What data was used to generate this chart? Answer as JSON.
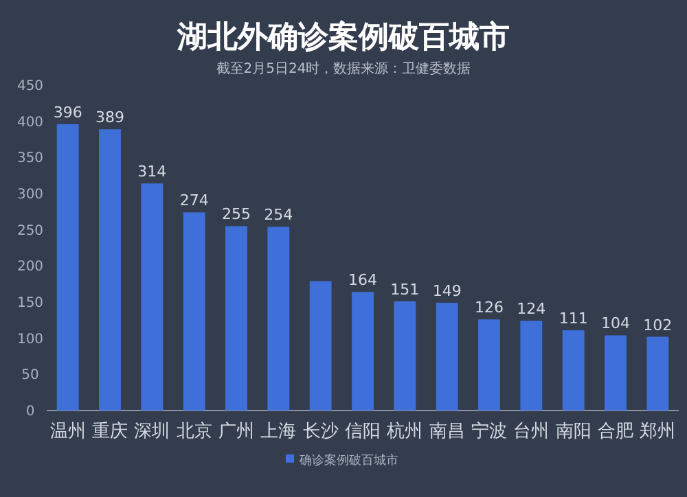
{
  "chart_data": {
    "type": "bar",
    "title": "湖北外确诊案例破百城市",
    "subtitle": "截至2月5日24时，数据来源：卫健委数据",
    "categories": [
      "温州",
      "重庆",
      "深圳",
      "北京",
      "广州",
      "上海",
      "长沙",
      "信阳",
      "杭州",
      "南昌",
      "宁波",
      "台州",
      "南阳",
      "合肥",
      "郑州"
    ],
    "series": [
      {
        "name": "确诊案例破百城市",
        "color": "#3f6fd8",
        "values": [
          396,
          389,
          314,
          274,
          255,
          254,
          179,
          164,
          151,
          149,
          126,
          124,
          111,
          104,
          102
        ],
        "value_labels": [
          "396",
          "389",
          "314",
          "274",
          "255",
          "254",
          null,
          "164",
          "151",
          "149",
          "126",
          "124",
          "111",
          "104",
          "102"
        ]
      }
    ],
    "ylim": [
      0,
      450
    ],
    "yticks": [
      0,
      50,
      100,
      150,
      200,
      250,
      300,
      350,
      400,
      450
    ],
    "legend": "bottom"
  }
}
